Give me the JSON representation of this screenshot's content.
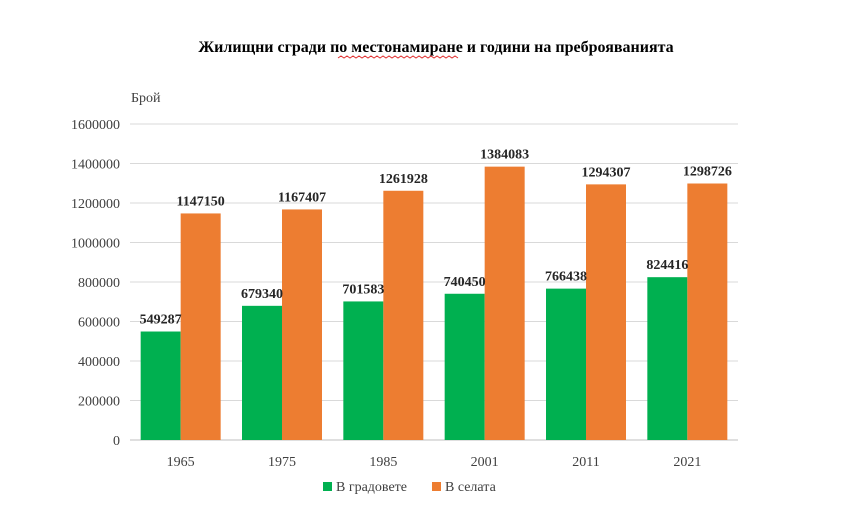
{
  "chart_data": {
    "type": "bar",
    "title": "Жилищни сгради по местонамиране и години на преброяванията",
    "xlabel": "",
    "ylabel": "Брой",
    "categories": [
      "1965",
      "1975",
      "1985",
      "2001",
      "2011",
      "2021"
    ],
    "series": [
      {
        "name": "В градовете",
        "color": "#00b050",
        "values": [
          549287,
          679340,
          701583,
          740450,
          766438,
          824416
        ]
      },
      {
        "name": "В селата",
        "color": "#ed7d31",
        "values": [
          1147150,
          1167407,
          1261928,
          1384083,
          1294307,
          1298726
        ]
      }
    ],
    "ylim": [
      0,
      1600000
    ],
    "yticks": [
      "0",
      "200000",
      "400000",
      "600000",
      "800000",
      "1000000",
      "1200000",
      "1400000",
      "1600000"
    ],
    "grid": true,
    "legend_position": "bottom",
    "data_labels": true
  }
}
